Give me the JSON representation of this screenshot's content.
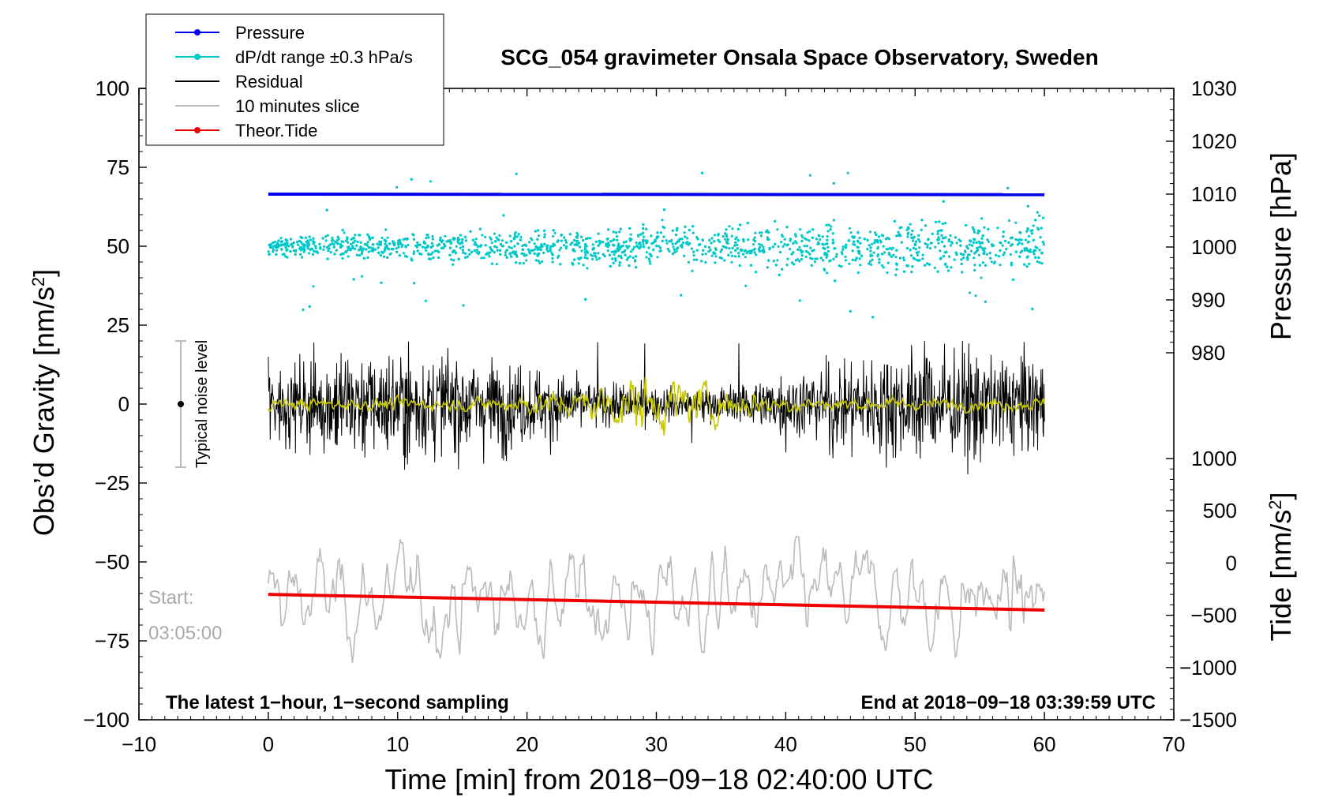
{
  "chart_data": {
    "type": "line",
    "title": "SCG_054 gravimeter Onsala Space Observatory, Sweden",
    "xlabel": "Time [min] from 2018−09−18 02:40:00 UTC",
    "ylabel_left": "Obs’d Gravity [nm/s",
    "ylabel_left_sup": "2",
    "ylabel_left_close": "]",
    "ylabel_pressure": "Pressure [hPa]",
    "ylabel_tide": "Tide [nm/s",
    "ylabel_tide_sup": "2",
    "ylabel_tide_close": "]",
    "xlim": [
      -10,
      70
    ],
    "ylim_left": [
      -100,
      100
    ],
    "pressure_range": [
      980,
      1030
    ],
    "tide_range": [
      -1500,
      1000
    ],
    "x_ticks": [
      "−10",
      "0",
      "10",
      "20",
      "30",
      "40",
      "50",
      "60",
      "70"
    ],
    "y_ticks_left": [
      "100",
      "75",
      "50",
      "25",
      "0",
      "−25",
      "−50",
      "−75",
      "−100"
    ],
    "y_ticks_pressure": [
      "1030",
      "1020",
      "1010",
      "1000",
      "990",
      "980"
    ],
    "y_ticks_tide": [
      "1000",
      "500",
      "0",
      "−500",
      "−1000",
      "−1500"
    ],
    "legend": [
      {
        "label": "Pressure",
        "color": "#0000ee"
      },
      {
        "label": "dP/dt range ±0.3 hPa/s",
        "color": "#00c8c8"
      },
      {
        "label": "Residual",
        "color": "#000000"
      },
      {
        "label": "10 minutes slice",
        "color": "#bbbbbb"
      },
      {
        "label": "Theor.Tide",
        "color": "#ee0000"
      }
    ],
    "series": [
      {
        "name": "Pressure",
        "axis": "pressure",
        "x_range": [
          0,
          60
        ],
        "start_hpa": 1010.0,
        "end_hpa": 1009.9
      },
      {
        "name": "dP/dt",
        "axis": "left",
        "x_range": [
          0,
          60
        ],
        "center": 50,
        "typical_spread": 3,
        "max_excursion": 27
      },
      {
        "name": "Residual",
        "axis": "left",
        "x_range": [
          0,
          60
        ],
        "center": 0,
        "typical_spread": 10,
        "min": -26,
        "max": 20
      },
      {
        "name": "10 minutes slice",
        "axis": "left",
        "x_range": [
          0,
          60
        ],
        "center": -62,
        "typical_spread": 10,
        "min": -82,
        "max": -42
      },
      {
        "name": "Theor.Tide",
        "axis": "tide",
        "x_range": [
          0,
          60
        ],
        "start_value": -300,
        "end_value": -450
      },
      {
        "name": "Residual smoothed",
        "axis": "left",
        "x_range": [
          0,
          60
        ],
        "center": 0,
        "color": "#cccc00"
      }
    ],
    "annotations": {
      "noise_label": "Typical noise level",
      "noise_range": [
        -20,
        20
      ],
      "start_label": "Start:",
      "start_time": "03:05:00",
      "bottom_left": "The latest 1−hour, 1−second sampling",
      "bottom_right": "End at 2018−09−18 03:39:59 UTC"
    }
  }
}
